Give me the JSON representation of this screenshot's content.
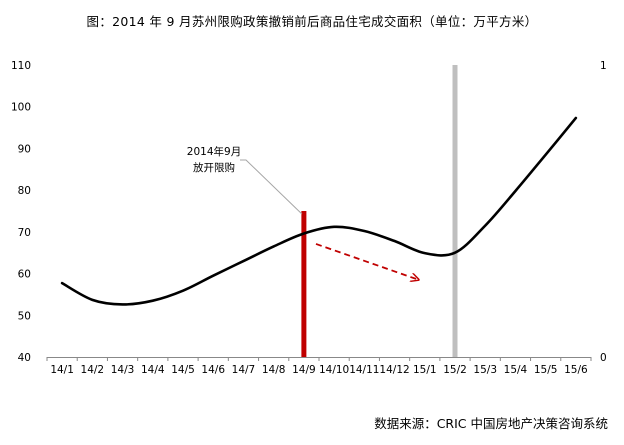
{
  "title": "图：2014 年 9 月苏州限购政策撤销前后商品住宅成交面积（单位：万平方米）",
  "source": "数据来源：CRIC 中国房地产决策咨询系统",
  "chart_data": {
    "type": "line",
    "categories": [
      "14/1",
      "14/2",
      "14/3",
      "14/4",
      "14/5",
      "14/6",
      "14/7",
      "14/8",
      "14/9",
      "14/10",
      "14/11",
      "14/12",
      "15/1",
      "15/2",
      "15/3",
      "15/4",
      "15/5",
      "15/6"
    ],
    "series": [
      {
        "values": [
          57.7,
          53.7,
          52.6,
          53.5,
          55.9,
          59.5,
          63.0,
          66.5,
          69.6,
          71.2,
          70.2,
          67.8,
          64.9,
          65.0,
          71.5,
          79.8,
          88.5,
          97.3
        ]
      }
    ],
    "y_left": {
      "min": 40,
      "max": 110,
      "ticks": [
        40,
        50,
        60,
        70,
        80,
        90,
        100,
        110
      ]
    },
    "y_right": {
      "min": 0,
      "max": 1,
      "ticks": [
        0,
        1
      ]
    },
    "markers": [
      {
        "category": "14/9",
        "kind": "bar",
        "value": 75,
        "color": "#c00000"
      },
      {
        "category": "15/2",
        "kind": "bar",
        "value": 110,
        "color": "#bfbfbf"
      }
    ],
    "annotation": {
      "lines": [
        "2014年9月",
        "放开限购"
      ],
      "target_category": "14/9"
    },
    "trend_arrow": {
      "from": {
        "x": 8.4,
        "y": 67.1
      },
      "to": {
        "x": 11.8,
        "y": 58.5
      },
      "color": "#c00000",
      "style": "dashed"
    },
    "line_color": "#000000",
    "grid": false
  }
}
